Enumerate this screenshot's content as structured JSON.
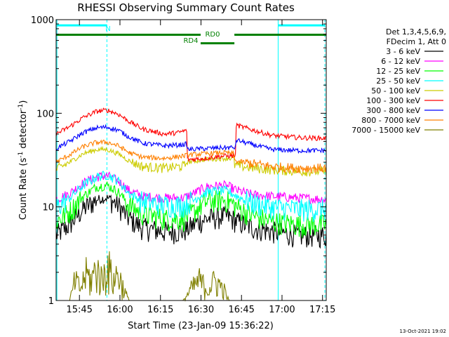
{
  "chart_data": {
    "type": "line",
    "title": "RHESSI Observing Summary Count Rates",
    "xlabel": "Start Time (23-Jan-09 15:36:22)",
    "ylabel_main": "Count Rate (s",
    "ylabel_sup1": "-1",
    "ylabel_mid": " detector",
    "ylabel_sup2": "-1",
    "ylabel_end": ")",
    "y_scale": "log",
    "ylim": [
      1,
      1000
    ],
    "xlim_minutes": [
      0,
      100
    ],
    "x_ticks": [
      {
        "label": "15:45",
        "value": 8.63
      },
      {
        "label": "16:00",
        "value": 23.63
      },
      {
        "label": "16:15",
        "value": 38.63
      },
      {
        "label": "16:30",
        "value": 53.63
      },
      {
        "label": "16:45",
        "value": 68.63
      },
      {
        "label": "17:00",
        "value": 83.63
      },
      {
        "label": "17:15",
        "value": 98.63
      }
    ],
    "y_ticks": [
      {
        "label": "1",
        "value": 1
      },
      {
        "label": "10",
        "value": 10
      },
      {
        "label": "100",
        "value": 100
      },
      {
        "label": "1000",
        "value": 1000
      }
    ],
    "legend_header": [
      "Det 1,3,4,5,6,9,",
      "FDecim 1, Att 0"
    ],
    "legend_placement": "right",
    "series": [
      {
        "name": "3 - 6 keV",
        "color": "#000000",
        "points": [
          [
            0,
            5
          ],
          [
            5,
            6.5
          ],
          [
            10,
            9.5
          ],
          [
            15,
            12
          ],
          [
            19,
            12.5
          ],
          [
            23,
            10.5
          ],
          [
            27,
            7.5
          ],
          [
            32,
            6
          ],
          [
            40,
            5.5
          ],
          [
            47,
            5.5
          ],
          [
            51,
            6.5
          ],
          [
            53,
            7
          ],
          [
            56,
            7.5
          ],
          [
            62,
            8
          ],
          [
            64,
            7.8
          ],
          [
            67,
            7
          ],
          [
            73,
            6
          ],
          [
            80,
            5.5
          ],
          [
            90,
            5
          ],
          [
            100,
            5
          ]
        ]
      },
      {
        "name": "6 - 12 keV",
        "color": "#ff00ff",
        "points": [
          [
            0,
            12
          ],
          [
            5,
            14
          ],
          [
            10,
            18
          ],
          [
            15,
            21
          ],
          [
            19,
            21.5
          ],
          [
            23,
            19
          ],
          [
            27,
            15
          ],
          [
            32,
            13
          ],
          [
            40,
            12.5
          ],
          [
            47,
            12.5
          ],
          [
            51,
            14
          ],
          [
            53,
            15
          ],
          [
            56,
            16.5
          ],
          [
            62,
            17
          ],
          [
            64,
            16.5
          ],
          [
            67,
            15
          ],
          [
            73,
            13.5
          ],
          [
            80,
            13
          ],
          [
            90,
            12.5
          ],
          [
            100,
            12
          ]
        ]
      },
      {
        "name": "12 - 25 keV",
        "color": "#00ff00",
        "points": [
          [
            0,
            7
          ],
          [
            5,
            9
          ],
          [
            10,
            13
          ],
          [
            15,
            16.5
          ],
          [
            19,
            17
          ],
          [
            23,
            14.5
          ],
          [
            27,
            10.5
          ],
          [
            32,
            8.5
          ],
          [
            40,
            7.5
          ],
          [
            47,
            7.5
          ],
          [
            51,
            9
          ],
          [
            53,
            10
          ],
          [
            56,
            11.5
          ],
          [
            62,
            12
          ],
          [
            64,
            11.5
          ],
          [
            67,
            10
          ],
          [
            73,
            8
          ],
          [
            80,
            7
          ],
          [
            90,
            6.5
          ],
          [
            100,
            6.5
          ]
        ]
      },
      {
        "name": "25 - 50 keV",
        "color": "#00ffff",
        "points": [
          [
            0,
            10
          ],
          [
            5,
            12.5
          ],
          [
            10,
            17
          ],
          [
            15,
            21
          ],
          [
            19,
            22
          ],
          [
            23,
            19
          ],
          [
            27,
            14
          ],
          [
            32,
            11.5
          ],
          [
            40,
            10.5
          ],
          [
            47,
            10.5
          ],
          [
            51,
            12
          ],
          [
            53,
            13
          ],
          [
            56,
            14.5
          ],
          [
            62,
            15
          ],
          [
            64,
            14.5
          ],
          [
            67,
            13
          ],
          [
            73,
            11
          ],
          [
            80,
            10
          ],
          [
            90,
            9.5
          ],
          [
            100,
            9.5
          ]
        ]
      },
      {
        "name": "50 - 100 keV",
        "color": "#cccc00",
        "points": [
          [
            0,
            25
          ],
          [
            5,
            30
          ],
          [
            10,
            37
          ],
          [
            15,
            41
          ],
          [
            19,
            41
          ],
          [
            23,
            37
          ],
          [
            27,
            31
          ],
          [
            32,
            27
          ],
          [
            40,
            26
          ],
          [
            46,
            27
          ],
          [
            48,
            28
          ],
          [
            48.1,
            30
          ],
          [
            55,
            32
          ],
          [
            62,
            33
          ],
          [
            66,
            33
          ],
          [
            66.1,
            28
          ],
          [
            73,
            26
          ],
          [
            80,
            25
          ],
          [
            90,
            24
          ],
          [
            100,
            24
          ]
        ]
      },
      {
        "name": "100 - 300 keV",
        "color": "#ff0000",
        "points": [
          [
            0,
            60
          ],
          [
            5,
            72
          ],
          [
            10,
            90
          ],
          [
            15,
            105
          ],
          [
            19,
            108
          ],
          [
            23,
            98
          ],
          [
            27,
            82
          ],
          [
            32,
            68
          ],
          [
            40,
            60
          ],
          [
            45,
            62
          ],
          [
            48.5,
            66
          ],
          [
            48.6,
            32
          ],
          [
            55,
            33
          ],
          [
            62,
            35
          ],
          [
            66.4,
            35
          ],
          [
            66.5,
            75
          ],
          [
            73,
            66
          ],
          [
            80,
            58
          ],
          [
            90,
            55
          ],
          [
            100,
            54
          ]
        ]
      },
      {
        "name": "300 - 800 keV",
        "color": "#0000ff",
        "points": [
          [
            0,
            42
          ],
          [
            5,
            50
          ],
          [
            10,
            62
          ],
          [
            15,
            70
          ],
          [
            19,
            71
          ],
          [
            23,
            66
          ],
          [
            27,
            56
          ],
          [
            32,
            48
          ],
          [
            40,
            45
          ],
          [
            46,
            46
          ],
          [
            48.5,
            47
          ],
          [
            48.6,
            41
          ],
          [
            55,
            42
          ],
          [
            62,
            43
          ],
          [
            66.4,
            43
          ],
          [
            66.5,
            52
          ],
          [
            73,
            46
          ],
          [
            80,
            41
          ],
          [
            90,
            40
          ],
          [
            100,
            40
          ]
        ]
      },
      {
        "name": "800 - 7000 keV",
        "color": "#ff8000",
        "points": [
          [
            0,
            30
          ],
          [
            5,
            36
          ],
          [
            10,
            44
          ],
          [
            15,
            49
          ],
          [
            19,
            49
          ],
          [
            23,
            45
          ],
          [
            27,
            38
          ],
          [
            32,
            34
          ],
          [
            40,
            33
          ],
          [
            47,
            35
          ],
          [
            49,
            36
          ],
          [
            55,
            37
          ],
          [
            62,
            38
          ],
          [
            66,
            37
          ],
          [
            66.1,
            31
          ],
          [
            73,
            29
          ],
          [
            80,
            27
          ],
          [
            90,
            26
          ],
          [
            100,
            26
          ]
        ]
      },
      {
        "name": "7000 - 15000 keV",
        "color": "#808000",
        "points": [
          [
            0,
            1
          ],
          [
            5,
            1
          ],
          [
            7,
            2
          ],
          [
            9,
            1.5
          ],
          [
            11,
            2.5
          ],
          [
            13,
            2
          ],
          [
            15,
            3
          ],
          [
            17,
            2
          ],
          [
            19,
            3.5
          ],
          [
            21,
            2
          ],
          [
            23,
            2.5
          ],
          [
            25,
            1.5
          ],
          [
            27,
            1
          ],
          [
            47,
            1
          ],
          [
            50,
            1.5
          ],
          [
            53,
            2
          ],
          [
            56,
            1.5
          ],
          [
            59,
            2
          ],
          [
            62,
            1.5
          ],
          [
            64,
            1
          ],
          [
            100,
            1
          ]
        ]
      }
    ],
    "annotations": {
      "top_labels": [
        {
          "text": "N",
          "color": "#00ffff"
        },
        {
          "text": "RD0",
          "color": "#008000"
        },
        {
          "text": "RD4",
          "color": "#008000"
        }
      ],
      "vertical_markers": [
        {
          "x": 0.3,
          "color": "#00ffff",
          "style": "solid"
        },
        {
          "x": 18.8,
          "color": "#00ffff",
          "style": "dashed"
        },
        {
          "x": 82.2,
          "color": "#00ffff",
          "style": "solid"
        },
        {
          "x": 99.5,
          "color": "#00ffff",
          "style": "dashed"
        }
      ],
      "bars": [
        {
          "label": "N",
          "color": "#00ffff",
          "x_start": 0.3,
          "x_end": 18.8,
          "value": 870
        },
        {
          "label": "N",
          "color": "#00ffff",
          "x_start": 82.2,
          "x_end": 99.5,
          "value": 870
        },
        {
          "label": "RD0",
          "color": "#008000",
          "x_start": 0,
          "x_end": 53.5,
          "value": 690
        },
        {
          "label": "RD0",
          "color": "#008000",
          "x_start": 66,
          "x_end": 100,
          "value": 690
        },
        {
          "label": "RD4",
          "color": "#008000",
          "x_start": 53.5,
          "x_end": 66,
          "value": 560
        }
      ]
    },
    "footer_date": "13-Oct-2021 19:02"
  }
}
